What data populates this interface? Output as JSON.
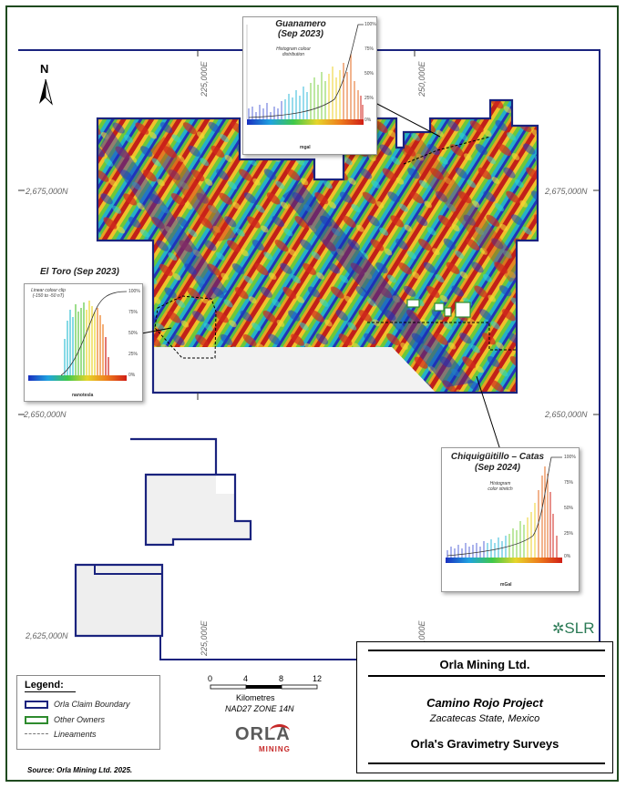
{
  "north": "N",
  "grid": {
    "easting": [
      "225,000E",
      "250,000E",
      "225,000E",
      "250,000E"
    ],
    "northing": [
      "2,675,000N",
      "2,675,000N",
      "2,650,000N",
      "2,650,000N",
      "2,625,000N"
    ]
  },
  "insets": {
    "guanamero": {
      "title": "Guanamero\n(Sep 2023)",
      "title_l1": "Guanamero",
      "title_l2": "(Sep 2023)",
      "note": "Histogram colour\ndistribution",
      "unit": "mgal",
      "pct": [
        "100%",
        "75%",
        "50%",
        "25%",
        "0%"
      ]
    },
    "eltoro": {
      "title": "El Toro (Sep 2023)",
      "note": "Linear colour clip\n(-150 to -50 nT)",
      "unit": "nanotesla",
      "pct": [
        "100%",
        "75%",
        "50%",
        "25%",
        "0%"
      ]
    },
    "chiqui": {
      "title_l1": "Chiquigüitillo – Catas",
      "title_l2": "(Sep 2024)",
      "note": "Histogram\ncolor stretch",
      "unit": "mGal",
      "pct": [
        "100%",
        "75%",
        "50%",
        "25%",
        "0%"
      ]
    }
  },
  "legend": {
    "title": "Legend:",
    "items": [
      "Orla Claim Boundary",
      "Other Owners",
      "Lineaments"
    ],
    "colors": {
      "claim": "#1a237e",
      "other": "#2e8b2e",
      "lineament": "#777777"
    }
  },
  "scale": {
    "ticks": [
      "0",
      "4",
      "8",
      "12"
    ],
    "unit": "Kilometres",
    "datum": "NAD27 ZONE 14N"
  },
  "logo": {
    "orla": "ORLA",
    "mining": "MINING"
  },
  "titleblock": {
    "company": "Orla Mining Ltd.",
    "project": "Camino Rojo Project",
    "location": "Zacatecas State, Mexico",
    "figure": "Orla's Gravimetry Surveys"
  },
  "slr": "SLR",
  "source": "Source:  Orla Mining Ltd. 2025."
}
